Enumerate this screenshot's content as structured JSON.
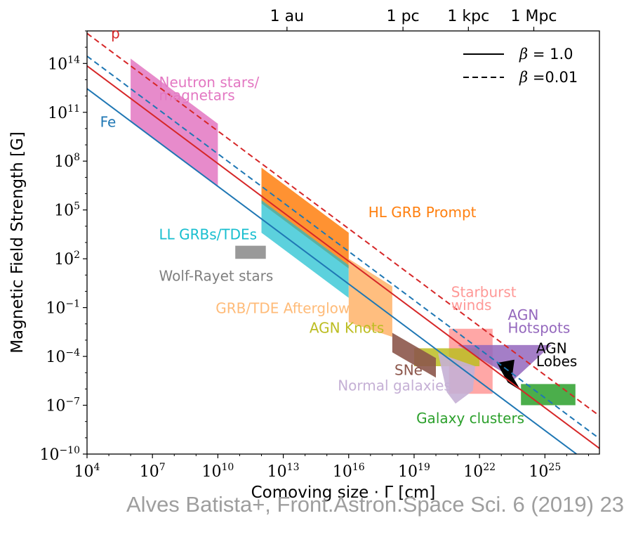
{
  "chart_data": {
    "type": "area",
    "xlabel": "Comoving size · Γ [cm]",
    "ylabel": "Magnetic Field Strength [G]",
    "log_x": true,
    "log_y": true,
    "xlim_log10": [
      4,
      27.5
    ],
    "ylim_log10": [
      -10,
      16
    ],
    "x_ticks": [
      {
        "base": "10",
        "exp": "4",
        "v": 4
      },
      {
        "base": "10",
        "exp": "7",
        "v": 7
      },
      {
        "base": "10",
        "exp": "10",
        "v": 10
      },
      {
        "base": "10",
        "exp": "13",
        "v": 13
      },
      {
        "base": "10",
        "exp": "16",
        "v": 16
      },
      {
        "base": "10",
        "exp": "19",
        "v": 19
      },
      {
        "base": "10",
        "exp": "22",
        "v": 22
      },
      {
        "base": "10",
        "exp": "25",
        "v": 25
      }
    ],
    "y_ticks": [
      {
        "base": "10",
        "exp": "14",
        "v": 14
      },
      {
        "base": "10",
        "exp": "11",
        "v": 11
      },
      {
        "base": "10",
        "exp": "8",
        "v": 8
      },
      {
        "base": "10",
        "exp": "5",
        "v": 5
      },
      {
        "base": "10",
        "exp": "2",
        "v": 2
      },
      {
        "base": "10",
        "exp": "−1",
        "v": -1
      },
      {
        "base": "10",
        "exp": "−4",
        "v": -4
      },
      {
        "base": "10",
        "exp": "−7",
        "v": -7
      },
      {
        "base": "10",
        "exp": "−10",
        "v": -10
      }
    ],
    "top_axis": [
      {
        "label": "1 au",
        "v": 13.17
      },
      {
        "label": "1 pc",
        "v": 18.49
      },
      {
        "label": "1 kpc",
        "v": 21.49
      },
      {
        "label": "1 Mpc",
        "v": 24.49
      }
    ],
    "legend": {
      "placement": "top-right",
      "entries": [
        {
          "style": "solid",
          "symbol": "β",
          "text": "= 1.0"
        },
        {
          "style": "dashed",
          "symbol": "β",
          "text": "=0.01"
        }
      ]
    },
    "lines": [
      {
        "name": "p",
        "color": "#d62728",
        "style": "solid",
        "x": [
          4,
          27.5
        ],
        "y": [
          13.85,
          -9.65
        ]
      },
      {
        "name": "p",
        "color": "#d62728",
        "style": "dashed",
        "x": [
          4,
          27.5
        ],
        "y": [
          15.85,
          -7.65
        ]
      },
      {
        "name": "Fe",
        "color": "#1f77b4",
        "style": "solid",
        "x": [
          4,
          27.5
        ],
        "y": [
          12.45,
          -11.05
        ]
      },
      {
        "name": "Fe",
        "color": "#1f77b4",
        "style": "dashed",
        "x": [
          4,
          27.5
        ],
        "y": [
          14.45,
          -9.05
        ]
      }
    ],
    "line_labels": [
      {
        "text": "p",
        "color": "#d62728",
        "x": 5.1,
        "y": 15.55
      },
      {
        "text": "Fe",
        "color": "#1f77b4",
        "x": 4.6,
        "y": 10.1
      }
    ],
    "regions": [
      {
        "name": "Neutron stars/ magnetars",
        "label_lines": [
          "Neutron stars/",
          "magnetars"
        ],
        "label_x": 7.3,
        "label_y": [
          12.55,
          11.75
        ],
        "color": "#e377c2",
        "opacity": 0.85,
        "poly": [
          [
            6,
            14.3
          ],
          [
            10,
            10.3
          ],
          [
            10,
            6.4
          ],
          [
            6,
            10.4
          ]
        ]
      },
      {
        "name": "HL GRB Prompt",
        "label_lines": [
          "HL GRB Prompt"
        ],
        "label_x": 16.9,
        "label_y": [
          4.55
        ],
        "color": "#ff7f0e",
        "opacity": 0.85,
        "poly": [
          [
            12,
            7.6
          ],
          [
            16,
            3.6
          ],
          [
            16,
            1.4
          ],
          [
            12,
            5.4
          ]
        ]
      },
      {
        "name": "LL GRBs/TDEs",
        "label_lines": [
          "LL GRBs/TDEs"
        ],
        "label_x": 7.3,
        "label_y": [
          3.2
        ],
        "color": "#17becf",
        "opacity": 0.7,
        "poly": [
          [
            12,
            5.6
          ],
          [
            16,
            1.6
          ],
          [
            16,
            -0.4
          ],
          [
            12,
            3.6
          ]
        ]
      },
      {
        "name": "GRB/TDE Afterglow",
        "label_lines": [
          "GRB/TDE Afterglow"
        ],
        "label_x": 9.9,
        "label_y": [
          -1.35
        ],
        "color": "#ffbb78",
        "opacity": 0.95,
        "poly": [
          [
            16,
            2
          ],
          [
            18,
            0.3
          ],
          [
            18,
            -2.8
          ],
          [
            16,
            -1.9
          ]
        ]
      },
      {
        "name": "Wolf-Rayet stars",
        "label_lines": [
          "Wolf-Rayet stars"
        ],
        "label_x": 7.3,
        "label_y": [
          0.65
        ],
        "color": "#7f7f7f",
        "opacity": 0.8,
        "poly": [
          [
            10.8,
            2.8
          ],
          [
            12.2,
            2.8
          ],
          [
            12.2,
            2
          ],
          [
            10.8,
            2
          ]
        ]
      },
      {
        "name": "Starburst winds",
        "label_lines": [
          "Starburst",
          "winds"
        ],
        "label_x": 20.7,
        "label_y": [
          -0.35,
          -1.15
        ],
        "color": "#ff9896",
        "opacity": 0.85,
        "poly": [
          [
            20.6,
            -2.3
          ],
          [
            22.6,
            -2.3
          ],
          [
            22.6,
            -6.3
          ],
          [
            20.6,
            -6.3
          ]
        ]
      },
      {
        "name": "AGN Knots",
        "label_lines": [
          "AGN Knots"
        ],
        "label_x": 14.2,
        "label_y": [
          -2.55
        ],
        "color": "#bcbd22",
        "opacity": 0.85,
        "poly": [
          [
            19,
            -3.5
          ],
          [
            22,
            -3.5
          ],
          [
            22,
            -4.6
          ],
          [
            19,
            -4.6
          ]
        ]
      },
      {
        "name": "SNe",
        "label_lines": [
          "SNe"
        ],
        "label_x": 18.1,
        "label_y": [
          -5.15
        ],
        "color": "#8c564b",
        "opacity": 0.9,
        "poly": [
          [
            18,
            -2.55
          ],
          [
            20,
            -4.1
          ],
          [
            20,
            -5.3
          ],
          [
            18,
            -3.75
          ]
        ]
      },
      {
        "name": "AGN Hotspots",
        "label_lines": [
          "AGN",
          "Hotspots"
        ],
        "label_x": 23.3,
        "label_y": [
          -1.75,
          -2.55
        ],
        "color": "#9467bd",
        "opacity": 0.85,
        "poly": [
          [
            21,
            -3.3
          ],
          [
            25.3,
            -3.3
          ],
          [
            23.6,
            -5.4
          ]
        ]
      },
      {
        "name": "Normal galaxies",
        "label_lines": [
          "Normal galaxies"
        ],
        "label_x": 15.5,
        "label_y": [
          -6.1
        ],
        "color": "#c5b0d5",
        "opacity": 0.9,
        "poly": [
          [
            20.1,
            -3.8
          ],
          [
            21.8,
            -4.6
          ],
          [
            21.7,
            -6.1
          ],
          [
            20.9,
            -6.9
          ],
          [
            20.5,
            -6.2
          ]
        ]
      },
      {
        "name": "AGN Lobes",
        "label_lines": [
          "AGN",
          "Lobes"
        ],
        "label_x": 24.6,
        "label_y": [
          -3.8,
          -4.6
        ],
        "color": "#000000",
        "opacity": 1,
        "poly": [
          [
            22.8,
            -4.4
          ],
          [
            23.6,
            -4.2
          ],
          [
            23.5,
            -5.2
          ],
          [
            23.9,
            -6.1
          ],
          [
            23.3,
            -5.6
          ],
          [
            23.0,
            -4.9
          ]
        ]
      },
      {
        "name": "Galaxy clusters",
        "label_lines": [
          "Galaxy clusters"
        ],
        "label_x": 19.1,
        "label_y": [
          -8.1
        ],
        "color": "#2ca02c",
        "opacity": 0.85,
        "poly": [
          [
            23.9,
            -5.7
          ],
          [
            26.4,
            -5.7
          ],
          [
            26.4,
            -7
          ],
          [
            23.9,
            -7
          ]
        ]
      }
    ]
  },
  "citation": "Alves Batista+, Front.Astron.Space Sci. 6 (2019) 23"
}
